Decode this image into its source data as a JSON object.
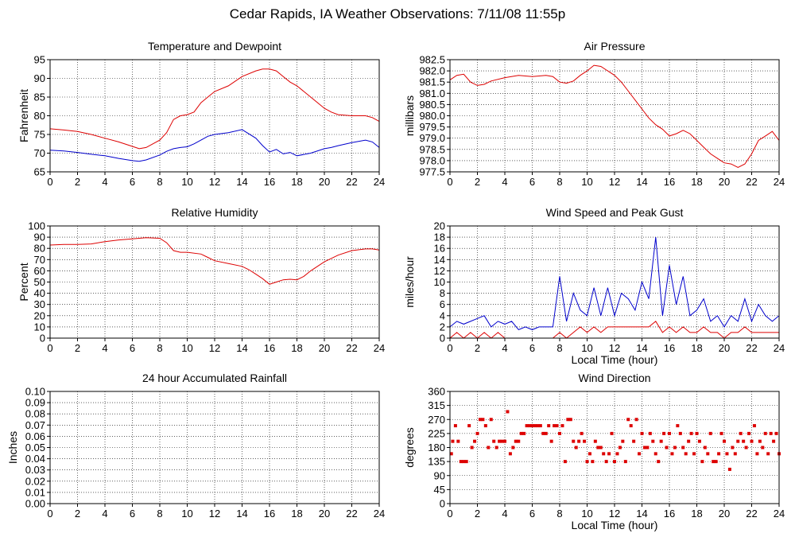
{
  "page": {
    "title": "Cedar Rapids, IA Weather Observations: 7/11/08 11:55p"
  },
  "colors": {
    "red": "#dd0000",
    "blue": "#0000cc",
    "grid": "#000000"
  },
  "chart_data": [
    {
      "type": "line",
      "title": "Temperature and Dewpoint",
      "ylabel": "Fahrenheit",
      "xlabel": "",
      "xlim": [
        0,
        24
      ],
      "ylim": [
        65,
        95
      ],
      "xticks": [
        0,
        2,
        4,
        6,
        8,
        10,
        12,
        14,
        16,
        18,
        20,
        22,
        24
      ],
      "yticks": [
        65,
        70,
        75,
        80,
        85,
        90,
        95
      ],
      "x": [
        0,
        1,
        2,
        3,
        4,
        5,
        6,
        6.5,
        7,
        8,
        8.5,
        9,
        9.5,
        10,
        10.5,
        11,
        11.5,
        12,
        13,
        14,
        15,
        15.5,
        16,
        16.5,
        17,
        17.5,
        18,
        19,
        20,
        20.5,
        21,
        22,
        23,
        23.5,
        24
      ],
      "series": [
        {
          "color": "red",
          "values": [
            76.5,
            76.2,
            75.8,
            75,
            74,
            73,
            71.8,
            71.2,
            71.5,
            73.5,
            75.5,
            79,
            80,
            80.3,
            81,
            83.5,
            85,
            86.5,
            88,
            90.5,
            92,
            92.5,
            92.5,
            92,
            90.5,
            89,
            88,
            85,
            82,
            81,
            80.3,
            80,
            80,
            79.5,
            78.5
          ]
        },
        {
          "color": "blue",
          "values": [
            70.8,
            70.6,
            70.2,
            69.7,
            69.3,
            68.6,
            68,
            67.8,
            68.2,
            69.5,
            70.5,
            71.2,
            71.5,
            71.7,
            72.5,
            73.5,
            74.5,
            75,
            75.5,
            76.3,
            74,
            72,
            70.3,
            71,
            69.8,
            70.2,
            69.3,
            70,
            71.2,
            71.5,
            72,
            72.8,
            73.5,
            73,
            71.5
          ]
        }
      ]
    },
    {
      "type": "line",
      "title": "Air Pressure",
      "ylabel": "millibars",
      "xlabel": "",
      "xlim": [
        0,
        24
      ],
      "ylim": [
        977.5,
        982.5
      ],
      "xticks": [
        0,
        2,
        4,
        6,
        8,
        10,
        12,
        14,
        16,
        18,
        20,
        22,
        24
      ],
      "yticks": [
        977.5,
        978.0,
        978.5,
        979.0,
        979.5,
        980.0,
        980.5,
        981.0,
        981.5,
        982.0,
        982.5
      ],
      "ytick_labels": [
        "977.5",
        "978.0",
        "978.5",
        "979.0",
        "979.5",
        "980.0",
        "980.5",
        "981.0",
        "981.5",
        "982.0",
        "982.5"
      ],
      "x": [
        0,
        0.5,
        1,
        1.5,
        2,
        2.5,
        3,
        4,
        5,
        6,
        7,
        7.5,
        8,
        8.5,
        9,
        9.5,
        10,
        10.5,
        11,
        11.5,
        12,
        12.5,
        13,
        14,
        14.5,
        15,
        15.5,
        16,
        16.5,
        17,
        17.5,
        18,
        18.5,
        19,
        19.5,
        20,
        20.5,
        21,
        21.5,
        22,
        22.5,
        23,
        23.5,
        24
      ],
      "series": [
        {
          "color": "red",
          "values": [
            981.6,
            981.8,
            981.85,
            981.5,
            981.35,
            981.4,
            981.55,
            981.7,
            981.8,
            981.75,
            981.8,
            981.75,
            981.5,
            981.45,
            981.55,
            981.8,
            982.0,
            982.25,
            982.2,
            982.0,
            981.8,
            981.5,
            981.1,
            980.3,
            979.9,
            979.6,
            979.4,
            979.1,
            979.2,
            979.35,
            979.2,
            978.9,
            978.6,
            978.3,
            978.1,
            977.9,
            977.85,
            977.7,
            977.85,
            978.3,
            978.9,
            979.1,
            979.3,
            978.9
          ]
        }
      ]
    },
    {
      "type": "line",
      "title": "Relative Humidity",
      "ylabel": "Percent",
      "xlabel": "",
      "xlim": [
        0,
        24
      ],
      "ylim": [
        0,
        100
      ],
      "xticks": [
        0,
        2,
        4,
        6,
        8,
        10,
        12,
        14,
        16,
        18,
        20,
        22,
        24
      ],
      "yticks": [
        0,
        10,
        20,
        30,
        40,
        50,
        60,
        70,
        80,
        90,
        100
      ],
      "x": [
        0,
        1,
        2,
        3,
        4,
        5,
        6,
        7,
        8,
        8.5,
        9,
        9.5,
        10,
        11,
        11.5,
        12,
        13,
        14,
        14.5,
        15,
        15.5,
        16,
        16.5,
        17,
        17.5,
        18,
        18.5,
        19,
        20,
        21,
        22,
        23,
        23.5,
        24
      ],
      "series": [
        {
          "color": "red",
          "values": [
            83,
            83.5,
            83.5,
            84,
            86,
            87.5,
            88.5,
            89.5,
            89,
            85,
            78,
            76.5,
            76.5,
            75,
            72,
            69,
            66.5,
            64,
            61,
            57,
            53,
            48,
            50,
            52,
            52.5,
            52,
            55,
            60,
            68,
            74,
            78,
            79.5,
            79.5,
            78.5
          ]
        }
      ]
    },
    {
      "type": "line",
      "title": "Wind Speed and Peak Gust",
      "ylabel": "miles/hour",
      "xlabel": "Local Time (hour)",
      "xlim": [
        0,
        24
      ],
      "ylim": [
        0,
        20
      ],
      "xticks": [
        0,
        2,
        4,
        6,
        8,
        10,
        12,
        14,
        16,
        18,
        20,
        22,
        24
      ],
      "yticks": [
        0,
        2,
        4,
        6,
        8,
        10,
        12,
        14,
        16,
        18,
        20
      ],
      "x": [
        0,
        0.5,
        1,
        1.5,
        2,
        2.5,
        3,
        3.5,
        4,
        4.5,
        5,
        5.5,
        6,
        6.5,
        7,
        7.5,
        8,
        8.5,
        9,
        9.5,
        10,
        10.5,
        11,
        11.5,
        12,
        12.5,
        13,
        13.5,
        14,
        14.5,
        15,
        15.5,
        16,
        16.5,
        17,
        17.5,
        18,
        18.5,
        19,
        19.5,
        20,
        20.5,
        21,
        21.5,
        22,
        22.5,
        23,
        23.5,
        24
      ],
      "series": [
        {
          "color": "blue",
          "values": [
            2,
            3,
            2.5,
            3,
            3.5,
            4,
            2,
            3,
            2.5,
            3,
            1.5,
            2,
            1.5,
            2,
            2,
            2,
            11,
            3,
            8,
            5,
            4,
            9,
            4,
            9,
            4,
            8,
            7,
            5,
            10,
            7,
            18,
            4,
            13,
            6,
            11,
            4,
            5,
            7,
            3,
            4,
            2,
            4,
            3,
            7,
            3,
            6,
            4,
            3,
            4
          ]
        },
        {
          "color": "red",
          "values": [
            0,
            1,
            0,
            1,
            0,
            1,
            0,
            1,
            0,
            0,
            0,
            0,
            0,
            0,
            0,
            0,
            1,
            0,
            1,
            2,
            1,
            2,
            1,
            2,
            2,
            2,
            2,
            2,
            2,
            2,
            3,
            1,
            2,
            1,
            2,
            1,
            1,
            2,
            1,
            1,
            0,
            1,
            1,
            2,
            1,
            1,
            1,
            1,
            1
          ]
        }
      ]
    },
    {
      "type": "line",
      "title": "24 hour Accumulated Rainfall",
      "ylabel": "Inches",
      "xlabel": "",
      "xlim": [
        0,
        24
      ],
      "ylim": [
        0,
        0.1
      ],
      "xticks": [
        0,
        2,
        4,
        6,
        8,
        10,
        12,
        14,
        16,
        18,
        20,
        22,
        24
      ],
      "yticks": [
        0,
        0.01,
        0.02,
        0.03,
        0.04,
        0.05,
        0.06,
        0.07,
        0.08,
        0.09,
        0.1
      ],
      "ytick_labels": [
        "0.00",
        "0.01",
        "0.02",
        "0.03",
        "0.04",
        "0.05",
        "0.06",
        "0.07",
        "0.08",
        "0.09",
        "0.10"
      ],
      "x": [
        0,
        24
      ],
      "series": [
        {
          "color": "red",
          "values": [
            0,
            0
          ]
        }
      ]
    },
    {
      "type": "scatter",
      "title": "Wind Direction",
      "ylabel": "degrees",
      "xlabel": "Local Time (hour)",
      "xlim": [
        0,
        24
      ],
      "ylim": [
        0,
        360
      ],
      "xticks": [
        0,
        2,
        4,
        6,
        8,
        10,
        12,
        14,
        16,
        18,
        20,
        22,
        24
      ],
      "yticks": [
        0,
        45,
        90,
        135,
        180,
        225,
        270,
        315,
        360
      ],
      "series": [
        {
          "color": "red",
          "x": [
            0.1,
            0.2,
            0.4,
            0.6,
            0.8,
            1.0,
            1.2,
            1.4,
            1.6,
            1.8,
            2.0,
            2.2,
            2.4,
            2.6,
            2.8,
            3.0,
            3.2,
            3.4,
            3.6,
            3.8,
            4.0,
            4.2,
            4.4,
            4.6,
            4.8,
            5.0,
            5.2,
            5.4,
            5.6,
            5.8,
            6.0,
            6.2,
            6.4,
            6.6,
            6.8,
            7.0,
            7.2,
            7.4,
            7.6,
            7.8,
            8.0,
            8.2,
            8.4,
            8.6,
            8.8,
            9.0,
            9.2,
            9.4,
            9.6,
            9.8,
            10.0,
            10.2,
            10.4,
            10.6,
            10.8,
            11.0,
            11.2,
            11.4,
            11.6,
            11.8,
            12.0,
            12.2,
            12.4,
            12.6,
            12.8,
            13.0,
            13.2,
            13.4,
            13.6,
            13.8,
            14.0,
            14.2,
            14.4,
            14.6,
            14.8,
            15.0,
            15.2,
            15.4,
            15.6,
            15.8,
            16.0,
            16.2,
            16.4,
            16.6,
            16.8,
            17.0,
            17.2,
            17.4,
            17.6,
            17.8,
            18.0,
            18.2,
            18.4,
            18.6,
            18.8,
            19.0,
            19.2,
            19.4,
            19.6,
            19.8,
            20.0,
            20.2,
            20.4,
            20.6,
            20.8,
            21.0,
            21.2,
            21.4,
            21.6,
            21.8,
            22.0,
            22.2,
            22.4,
            22.6,
            22.8,
            23.0,
            23.2,
            23.4,
            23.6,
            23.8,
            24.0
          ],
          "values": [
            160,
            200,
            250,
            200,
            135,
            135,
            135,
            250,
            180,
            200,
            225,
            270,
            270,
            250,
            180,
            270,
            200,
            180,
            200,
            200,
            200,
            295,
            160,
            180,
            200,
            200,
            225,
            225,
            250,
            250,
            250,
            250,
            250,
            250,
            225,
            225,
            250,
            200,
            250,
            250,
            225,
            250,
            135,
            270,
            270,
            200,
            180,
            200,
            225,
            200,
            135,
            160,
            135,
            200,
            180,
            180,
            160,
            135,
            160,
            225,
            135,
            160,
            180,
            200,
            135,
            270,
            250,
            200,
            270,
            160,
            225,
            180,
            180,
            225,
            200,
            160,
            135,
            200,
            225,
            180,
            225,
            160,
            180,
            250,
            225,
            180,
            160,
            200,
            225,
            160,
            225,
            200,
            135,
            180,
            160,
            225,
            135,
            135,
            160,
            225,
            200,
            160,
            110,
            180,
            160,
            200,
            225,
            200,
            180,
            225,
            200,
            250,
            160,
            200,
            180,
            225,
            160,
            225,
            200,
            225,
            160
          ]
        }
      ]
    }
  ]
}
